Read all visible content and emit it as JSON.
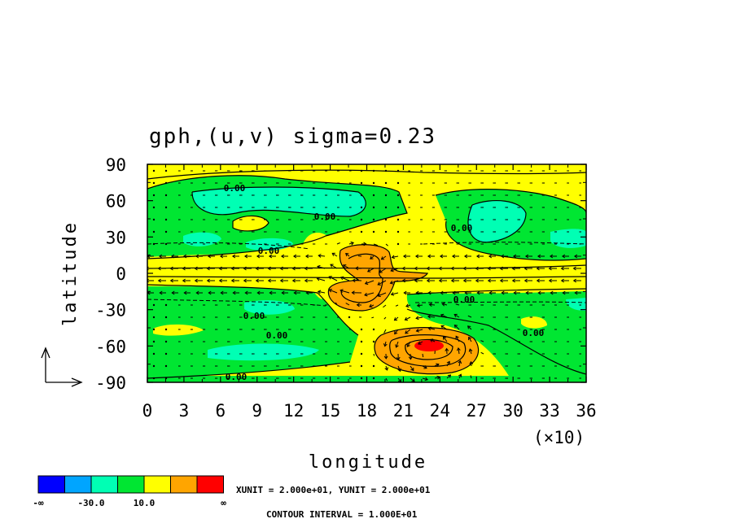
{
  "chart_data": {
    "type": "heatmap",
    "title": "gph,(u,v)  sigma=0.23",
    "xlabel": "longitude",
    "ylabel": "latitude",
    "x_multiplier_label": "(×10)",
    "xlim": [
      0,
      36
    ],
    "ylim": [
      -90,
      90
    ],
    "xticks": [
      "0",
      "3",
      "6",
      "9",
      "12",
      "15",
      "18",
      "21",
      "24",
      "27",
      "30",
      "33",
      "36"
    ],
    "yticks": [
      "90",
      "60",
      "30",
      "0",
      "-30",
      "-60",
      "-90"
    ],
    "contour_labels": [
      "0.00",
      "0.00",
      "0.00",
      "0.00",
      "0.00",
      "0.00",
      "0.00",
      "0.00",
      "0.00"
    ],
    "vector_units": "XUNIT = 2.000e+01, YUNIT = 2.000e+01",
    "contour_interval": "CONTOUR INTERVAL = 1.000E+01",
    "colorbar": {
      "labels": [
        "-∞",
        "-30.0",
        "10.0",
        "∞"
      ],
      "colors": [
        "#0000ff",
        "#00a5ff",
        "#00ffb4",
        "#00e632",
        "#ffff00",
        "#ffa500",
        "#ff0000"
      ]
    }
  }
}
